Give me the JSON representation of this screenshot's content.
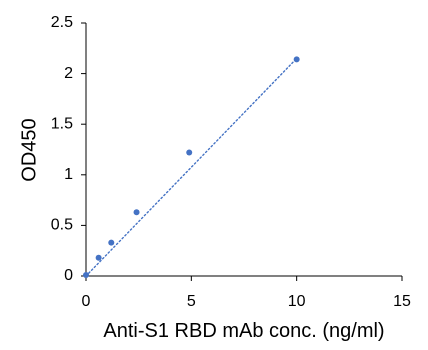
{
  "chart_data": {
    "type": "scatter",
    "title": "",
    "xlabel": "Anti-S1 RBD mAb conc. (ng/ml)",
    "ylabel": "OD450",
    "xlim": [
      0,
      15
    ],
    "ylim": [
      0,
      2.5
    ],
    "x_ticks": [
      0,
      5,
      10,
      15
    ],
    "y_ticks": [
      0,
      0.5,
      1,
      1.5,
      2,
      2.5
    ],
    "x_tick_labels": [
      "0",
      "5",
      "10",
      "15"
    ],
    "y_tick_labels": [
      "0",
      "0.5",
      "1",
      "1.5",
      "2",
      "2.5"
    ],
    "grid": false,
    "legend": "none",
    "series": [
      {
        "x": [
          0,
          0.6,
          1.2,
          2.4,
          4.9,
          10
        ],
        "y": [
          0.01,
          0.18,
          0.33,
          0.63,
          1.22,
          2.14
        ],
        "color": "#4472C4"
      }
    ],
    "trendline": {
      "style": "dotted",
      "color": "#4472C4",
      "x": [
        0,
        10
      ],
      "y": [
        0,
        2.15
      ]
    }
  }
}
